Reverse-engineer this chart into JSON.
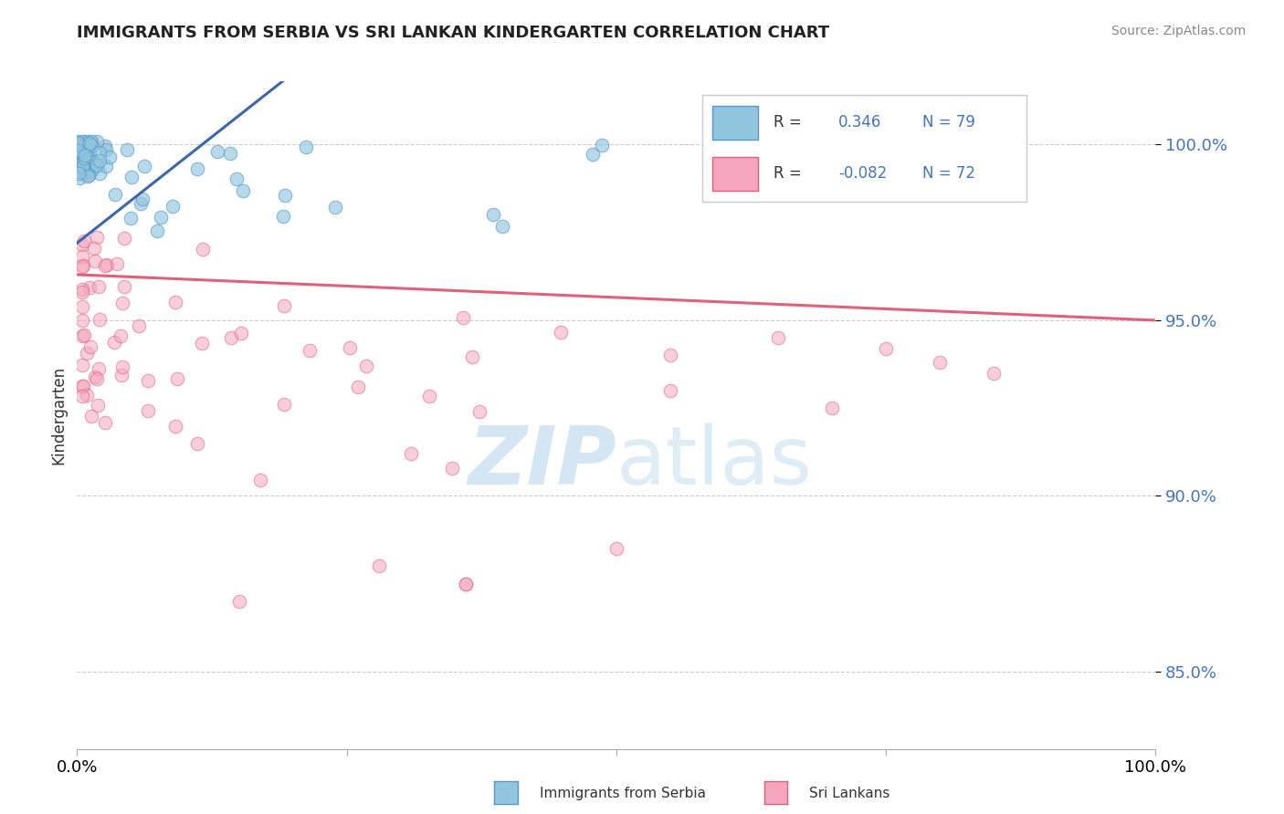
{
  "title": "IMMIGRANTS FROM SERBIA VS SRI LANKAN KINDERGARTEN CORRELATION CHART",
  "source": "Source: ZipAtlas.com",
  "ylabel": "Kindergarten",
  "y_ticks": [
    0.85,
    0.9,
    0.95,
    1.0
  ],
  "y_tick_labels": [
    "85.0%",
    "90.0%",
    "95.0%",
    "100.0%"
  ],
  "x_range": [
    0.0,
    1.0
  ],
  "y_range": [
    0.828,
    1.018
  ],
  "serbia_color": "#92c5de",
  "serbia_edge_color": "#5599cc",
  "srilanka_color": "#f4a6bc",
  "srilanka_edge_color": "#e06080",
  "trend_serbia_color": "#3a67b0",
  "trend_srilanka_color": "#e0607a",
  "serbia_R": 0.346,
  "serbia_N": 79,
  "srilanka_R": -0.082,
  "srilanka_N": 72,
  "legend_R_color": "#4472c4",
  "legend_label_color": "#4472c4",
  "tick_color": "#4472c4",
  "watermark_color": "#d0e4f2",
  "grid_color": "#cccccc",
  "serbia_trend_x0": 0.0,
  "serbia_trend_y0": 0.972,
  "serbia_trend_x1": 0.12,
  "serbia_trend_y1": 1.001,
  "srilanka_trend_x0": 0.0,
  "srilanka_trend_y0": 0.963,
  "srilanka_trend_x1": 1.0,
  "srilanka_trend_y1": 0.95
}
